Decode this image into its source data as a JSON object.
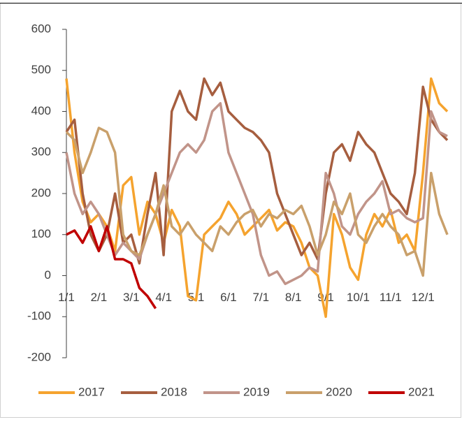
{
  "chart_data": {
    "type": "line",
    "categories": [
      "1/1",
      null,
      null,
      null,
      "2/1",
      null,
      null,
      null,
      "3/1",
      null,
      null,
      null,
      "4/1",
      null,
      null,
      null,
      "5/1",
      null,
      null,
      null,
      "6/1",
      null,
      null,
      null,
      "7/1",
      null,
      null,
      null,
      "8/1",
      null,
      null,
      null,
      "9/1",
      null,
      null,
      null,
      "10/1",
      null,
      null,
      null,
      "11/1",
      null,
      null,
      null,
      "12/1",
      null,
      null,
      null
    ],
    "series": [
      {
        "name": "2017",
        "color": "#F5A32E",
        "values": [
          480,
          300,
          180,
          130,
          150,
          120,
          60,
          220,
          240,
          100,
          180,
          150,
          80,
          160,
          120,
          -50,
          -60,
          100,
          120,
          140,
          180,
          150,
          100,
          120,
          140,
          160,
          110,
          130,
          120,
          80,
          20,
          0,
          -100,
          150,
          100,
          20,
          -10,
          100,
          150,
          120,
          160,
          80,
          100,
          60,
          250,
          480,
          420,
          400
        ]
      },
      {
        "name": "2018",
        "color": "#A65E3F",
        "values": [
          350,
          380,
          200,
          100,
          60,
          100,
          200,
          80,
          100,
          30,
          150,
          250,
          50,
          400,
          450,
          400,
          380,
          480,
          440,
          470,
          400,
          380,
          360,
          350,
          330,
          300,
          200,
          150,
          100,
          50,
          80,
          40,
          200,
          300,
          320,
          280,
          350,
          320,
          300,
          250,
          200,
          180,
          150,
          250,
          460,
          380,
          350,
          330
        ]
      },
      {
        "name": "2019",
        "color": "#C19489",
        "values": [
          300,
          200,
          150,
          180,
          150,
          100,
          50,
          80,
          60,
          40,
          100,
          150,
          200,
          250,
          300,
          320,
          300,
          330,
          400,
          420,
          300,
          250,
          200,
          150,
          50,
          0,
          10,
          -20,
          -10,
          0,
          20,
          10,
          250,
          200,
          120,
          100,
          150,
          180,
          200,
          230,
          150,
          160,
          140,
          130,
          140,
          400,
          350,
          340
        ]
      },
      {
        "name": "2020",
        "color": "#C9A06B",
        "values": [
          350,
          330,
          250,
          300,
          360,
          350,
          300,
          100,
          60,
          50,
          100,
          150,
          220,
          120,
          100,
          130,
          100,
          80,
          60,
          120,
          100,
          130,
          150,
          160,
          120,
          150,
          140,
          160,
          150,
          170,
          120,
          50,
          100,
          180,
          150,
          200,
          100,
          80,
          120,
          150,
          120,
          100,
          50,
          60,
          0,
          250,
          150,
          100
        ]
      },
      {
        "name": "2021",
        "color": "#C00000",
        "values": [
          100,
          110,
          80,
          120,
          60,
          120,
          40,
          40,
          30,
          -30,
          -50,
          -80,
          null,
          null,
          null,
          null,
          null,
          null,
          null,
          null,
          null,
          null,
          null,
          null,
          null,
          null,
          null,
          null,
          null,
          null,
          null,
          null,
          null,
          null,
          null,
          null,
          null,
          null,
          null,
          null,
          null,
          null,
          null,
          null,
          null,
          null,
          null,
          null
        ]
      }
    ],
    "ylim": [
      -200,
      600
    ],
    "yticks": [
      -200,
      -100,
      0,
      100,
      200,
      300,
      400,
      500,
      600
    ],
    "legend": "bottom"
  }
}
